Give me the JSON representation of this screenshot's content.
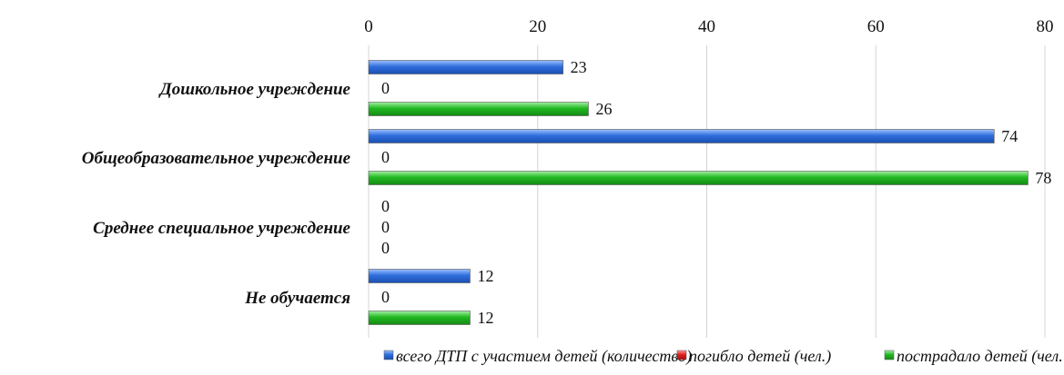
{
  "chart_data": {
    "type": "bar",
    "orientation": "horizontal",
    "categories": [
      "Дошкольное учреждение",
      "Общеобразовательное учреждение",
      "Среднее специальное учреждение",
      "Не обучается"
    ],
    "series": [
      {
        "name": "всего ДТП с участием детей (количество)",
        "values": [
          23,
          74,
          0,
          12
        ],
        "color": "#2f6fde"
      },
      {
        "name": "погибло детей (чел.)",
        "values": [
          0,
          0,
          0,
          0
        ],
        "color": "#e02020"
      },
      {
        "name": "пострадало детей (чел. )",
        "values": [
          26,
          78,
          0,
          12
        ],
        "color": "#21b921"
      }
    ],
    "xlim": [
      0,
      80
    ],
    "x_ticks": [
      0,
      20,
      40,
      60,
      80
    ],
    "x_axis_position": "top",
    "grid": "vertical",
    "legend_position": "bottom"
  }
}
